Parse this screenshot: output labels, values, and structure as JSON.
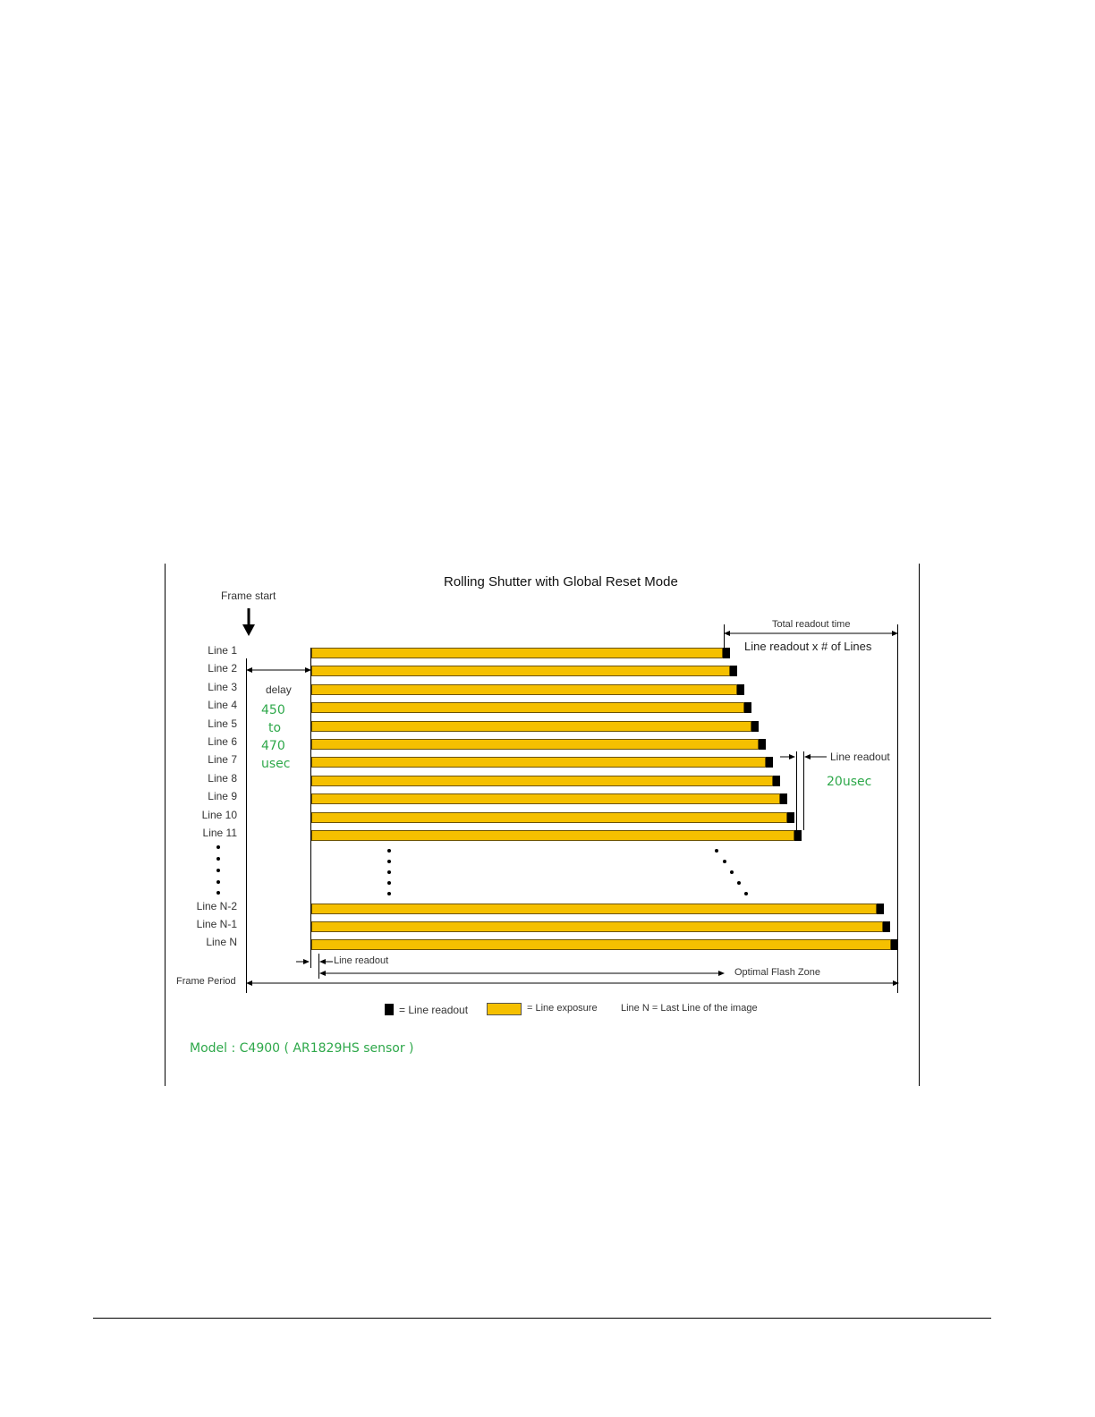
{
  "figure": {
    "title": "Rolling Shutter  with  Global Reset Mode",
    "frame_start": "Frame start",
    "delay_label": "delay",
    "delay_values": [
      "450",
      "to",
      "470",
      "usec"
    ],
    "total_readout_time": "Total readout time",
    "line_readout_x_lines": "Line readout  x # of Lines",
    "line_readout_label": "Line readout",
    "line_readout_time": "20usec",
    "bottom_line_readout": "Line readout",
    "optimal_flash_zone": "Optimal Flash Zone",
    "frame_period": "Frame Period",
    "legend": {
      "readout": "= Line readout",
      "exposure": "= Line exposure",
      "line_n": "Line N  = Last Line of the image"
    },
    "model": "Model : C4900  ( AR1829HS sensor )",
    "colors": {
      "exposure": "#f5c000",
      "readout": "#000000",
      "annotation_green": "#2ea84a"
    }
  },
  "rows": [
    {
      "label": "Line 1"
    },
    {
      "label": "Line 2"
    },
    {
      "label": "Line 3"
    },
    {
      "label": "Line 4"
    },
    {
      "label": "Line 5"
    },
    {
      "label": "Line 6"
    },
    {
      "label": "Line 7"
    },
    {
      "label": "Line 8"
    },
    {
      "label": "Line 9"
    },
    {
      "label": "Line 10"
    },
    {
      "label": "Line 11"
    },
    {
      "label": "Line N-2"
    },
    {
      "label": "Line N-1"
    },
    {
      "label": "Line N"
    }
  ]
}
